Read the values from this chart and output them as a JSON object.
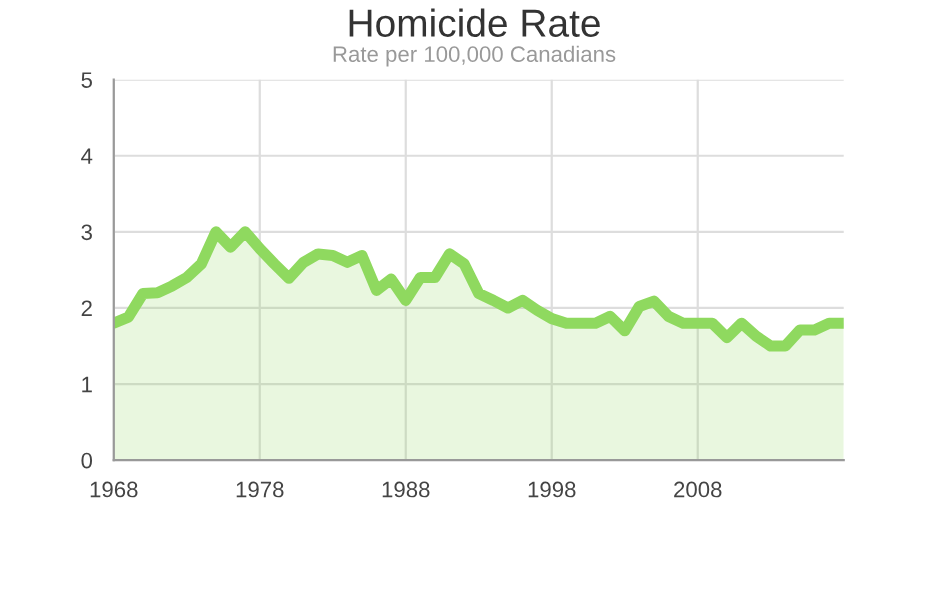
{
  "chart_data": {
    "type": "area",
    "title": "Homicide Rate",
    "subtitle": "Rate per 100,000 Canadians",
    "x": [
      1968,
      1969,
      1970,
      1971,
      1972,
      1973,
      1974,
      1975,
      1976,
      1977,
      1978,
      1979,
      1980,
      1981,
      1982,
      1983,
      1984,
      1985,
      1986,
      1987,
      1988,
      1989,
      1990,
      1991,
      1992,
      1993,
      1994,
      1995,
      1996,
      1997,
      1998,
      1999,
      2000,
      2001,
      2002,
      2003,
      2004,
      2005,
      2006,
      2007,
      2008,
      2009,
      2010,
      2011,
      2012,
      2013,
      2014,
      2015,
      2016,
      2017,
      2018
    ],
    "series": [
      {
        "color": "#8fd95f",
        "values": [
          1.8,
          1.88,
          2.19,
          2.2,
          2.29,
          2.4,
          2.58,
          3.0,
          2.8,
          3.0,
          2.78,
          2.58,
          2.39,
          2.6,
          2.71,
          2.69,
          2.6,
          2.69,
          2.23,
          2.38,
          2.1,
          2.4,
          2.4,
          2.71,
          2.58,
          2.19,
          2.1,
          2.0,
          2.1,
          1.97,
          1.86,
          1.8,
          1.8,
          1.8,
          1.89,
          1.7,
          2.02,
          2.09,
          1.89,
          1.8,
          1.8,
          1.8,
          1.61,
          1.8,
          1.63,
          1.5,
          1.5,
          1.71,
          1.71,
          1.8,
          1.8
        ]
      }
    ],
    "xlim": [
      1968,
      2018
    ],
    "xticks": [
      1968,
      1978,
      1988,
      1998,
      2008
    ],
    "ylim": [
      0,
      5
    ],
    "yticks": [
      0,
      1,
      2,
      3,
      4,
      5
    ],
    "grid": true,
    "legend": false
  }
}
